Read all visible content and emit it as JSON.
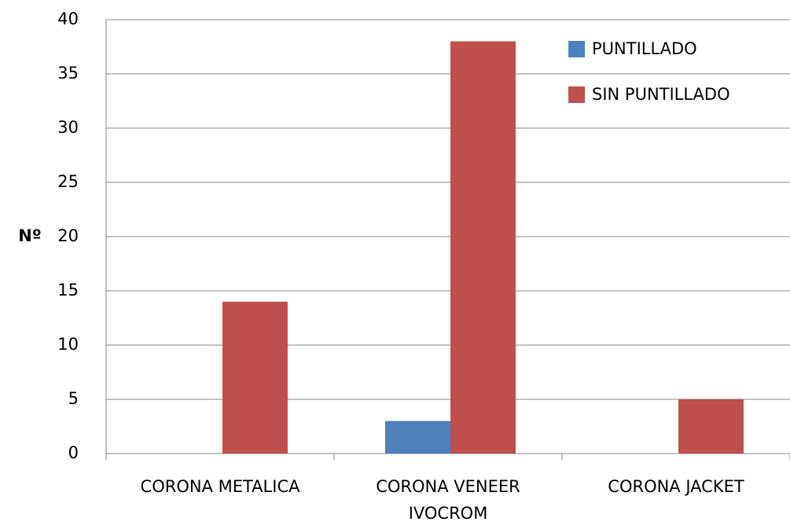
{
  "chart_data": {
    "type": "bar",
    "y_label": "Nº",
    "categories": [
      "CORONA METALICA",
      "CORONA VENEER IVOCROM",
      "CORONA JACKET"
    ],
    "series": [
      {
        "name": "PUNTILLADO",
        "color": "#4f81bd",
        "values": [
          0,
          3,
          0
        ]
      },
      {
        "name": "SIN PUNTILLADO",
        "color": "#c0504d",
        "values": [
          14,
          38,
          5
        ]
      }
    ],
    "ylim": [
      0,
      40
    ],
    "yticks": [
      0,
      5,
      10,
      15,
      20,
      25,
      30,
      35,
      40
    ],
    "grid": true,
    "legend": "upper right"
  }
}
